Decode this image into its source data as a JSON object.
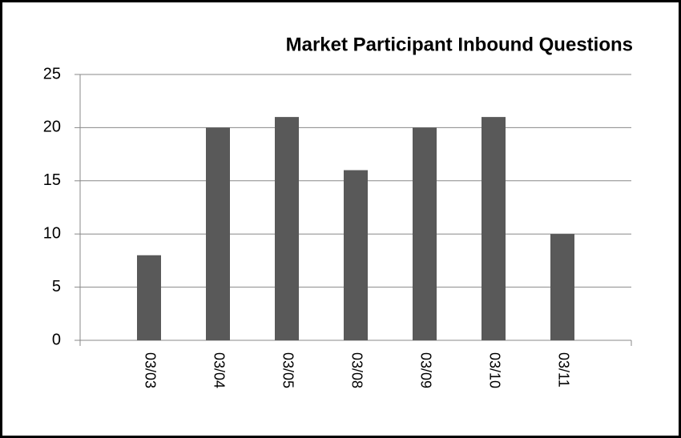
{
  "chart_data": {
    "type": "bar",
    "title": "Market Participant Inbound Questions",
    "categories": [
      null,
      "03/03",
      "03/04",
      "03/05",
      "03/08",
      "03/09",
      "03/10",
      "03/11",
      null
    ],
    "values": [
      null,
      8,
      20,
      21,
      16,
      20,
      21,
      10,
      null
    ],
    "color": "#595959",
    "ylim": [
      0,
      25
    ],
    "yticks": [
      0,
      5,
      10,
      15,
      20,
      25
    ],
    "grid": true
  }
}
